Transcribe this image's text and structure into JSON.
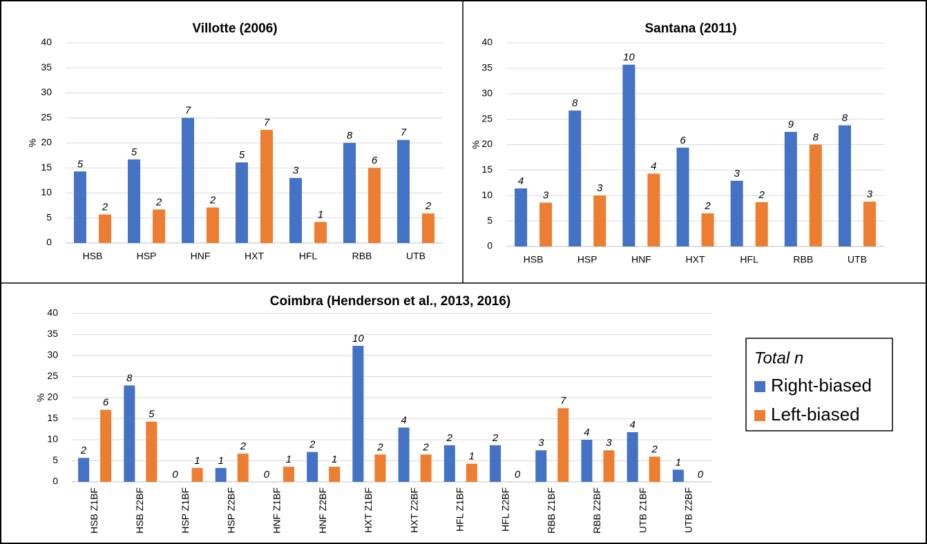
{
  "chart_data": [
    {
      "type": "bar",
      "title": "Villotte (2006)",
      "y_label": "%",
      "categories": [
        "HSB",
        "HSP",
        "HNF",
        "HXT",
        "HFL",
        "RBB",
        "UTB"
      ],
      "series": [
        {
          "name": "Right-biased",
          "color": "#4472c4",
          "values": [
            14.3,
            16.7,
            25,
            16.1,
            13,
            20,
            20.6
          ],
          "n": [
            5,
            5,
            7,
            5,
            3,
            8,
            7
          ]
        },
        {
          "name": "Left-biased",
          "color": "#ed7d31",
          "values": [
            5.7,
            6.7,
            7.1,
            22.6,
            4.2,
            15,
            5.9
          ],
          "n": [
            2,
            2,
            2,
            7,
            1,
            6,
            2
          ]
        }
      ],
      "ylim": [
        0,
        40
      ],
      "yticks": [
        0,
        5,
        10,
        15,
        20,
        25,
        30,
        35,
        40
      ],
      "grid": true
    },
    {
      "type": "bar",
      "title": "Santana (2011)",
      "y_label": "%",
      "categories": [
        "HSB",
        "HSP",
        "HNF",
        "HXT",
        "HFL",
        "RBB",
        "UTB"
      ],
      "series": [
        {
          "name": "Right-biased",
          "color": "#4472c4",
          "values": [
            11.4,
            26.7,
            35.7,
            19.4,
            12.9,
            22.5,
            23.8
          ],
          "n": [
            4,
            8,
            10,
            6,
            3,
            9,
            8
          ]
        },
        {
          "name": "Left-biased",
          "color": "#ed7d31",
          "values": [
            8.6,
            10,
            14.3,
            6.5,
            8.7,
            20,
            8.8
          ],
          "n": [
            3,
            3,
            4,
            2,
            2,
            8,
            3
          ]
        }
      ],
      "ylim": [
        0,
        40
      ],
      "yticks": [
        0,
        5,
        10,
        15,
        20,
        25,
        30,
        35,
        40
      ],
      "grid": true
    },
    {
      "type": "bar",
      "title": "Coimbra (Henderson et al., 2013, 2016)",
      "y_label": "%",
      "categories": [
        "HSB Z1BF",
        "HSB Z2BF",
        "HSP Z1BF",
        "HSP Z2BF",
        "HNF Z1BF",
        "HNF Z2BF",
        "HXT Z1BF",
        "HXT Z2BF",
        "HFL Z1BF",
        "HFL Z2BF",
        "RBB Z1BF",
        "RBB Z2BF",
        "UTB Z1BF",
        "UTB Z2BF"
      ],
      "series": [
        {
          "name": "Right-biased",
          "color": "#4472c4",
          "values": [
            5.7,
            22.9,
            0,
            3.3,
            0,
            7.1,
            32.3,
            12.9,
            8.7,
            8.7,
            7.5,
            10,
            11.8,
            2.9
          ],
          "n": [
            2,
            8,
            0,
            1,
            0,
            2,
            10,
            4,
            2,
            2,
            3,
            4,
            4,
            1
          ]
        },
        {
          "name": "Left-biased",
          "color": "#ed7d31",
          "values": [
            17.1,
            14.3,
            3.3,
            6.7,
            3.6,
            3.6,
            6.5,
            6.5,
            4.3,
            0,
            17.5,
            7.5,
            6,
            0
          ],
          "n": [
            6,
            5,
            1,
            2,
            1,
            1,
            2,
            2,
            1,
            0,
            7,
            3,
            2,
            0
          ]
        }
      ],
      "ylim": [
        0,
        40
      ],
      "yticks": [
        0,
        5,
        10,
        15,
        20,
        25,
        30,
        35,
        40
      ],
      "grid": true,
      "legend_title": "Total n",
      "legend": "right"
    }
  ]
}
